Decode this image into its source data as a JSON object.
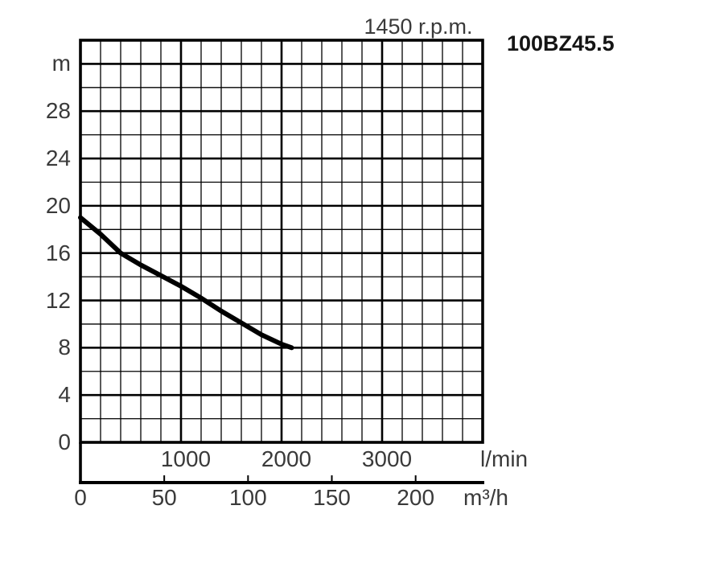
{
  "header": {
    "title": "1450 r.p.m.",
    "model": "100BZ45.5"
  },
  "colors": {
    "background": "#ffffff",
    "grid_line": "#000000",
    "curve": "#000000",
    "label_text": "#3a3a3a",
    "model_text": "#151515"
  },
  "chart_data": {
    "type": "line",
    "title": "1450 r.p.m.",
    "series_label": "100BZ45.5",
    "grid": true,
    "legend": "none",
    "y_unit": "m",
    "x_unit_primary": "l/min",
    "x_unit_secondary": "m³/h",
    "x_range_lmin": [
      0,
      4000
    ],
    "y_range_m": [
      0,
      34
    ],
    "x_minor_step_lmin": 200,
    "x_major_step_lmin": 1000,
    "y_minor_step_m": 2,
    "y_major_step_m": 4,
    "lmin_per_m3h": 16.6667,
    "y_tick_labels": [
      "m",
      "28",
      "24",
      "20",
      "16",
      "12",
      "8",
      "4",
      "0"
    ],
    "y_tick_values": [
      32,
      28,
      24,
      20,
      16,
      12,
      8,
      4,
      0
    ],
    "x_lmin_tick_labels": [
      "1000",
      "2000",
      "3000"
    ],
    "x_lmin_tick_values": [
      1000,
      2000,
      3000
    ],
    "x_m3h_tick_labels": [
      "0",
      "50",
      "100",
      "150",
      "200"
    ],
    "x_m3h_tick_values": [
      0,
      50,
      100,
      150,
      200
    ],
    "curve_points_lmin_m": [
      [
        0,
        19.0
      ],
      [
        200,
        17.6
      ],
      [
        400,
        16.0
      ],
      [
        600,
        15.0
      ],
      [
        800,
        14.1
      ],
      [
        1000,
        13.2
      ],
      [
        1200,
        12.2
      ],
      [
        1400,
        11.1
      ],
      [
        1600,
        10.1
      ],
      [
        1800,
        9.1
      ],
      [
        2000,
        8.3
      ],
      [
        2100,
        8.0
      ]
    ]
  }
}
